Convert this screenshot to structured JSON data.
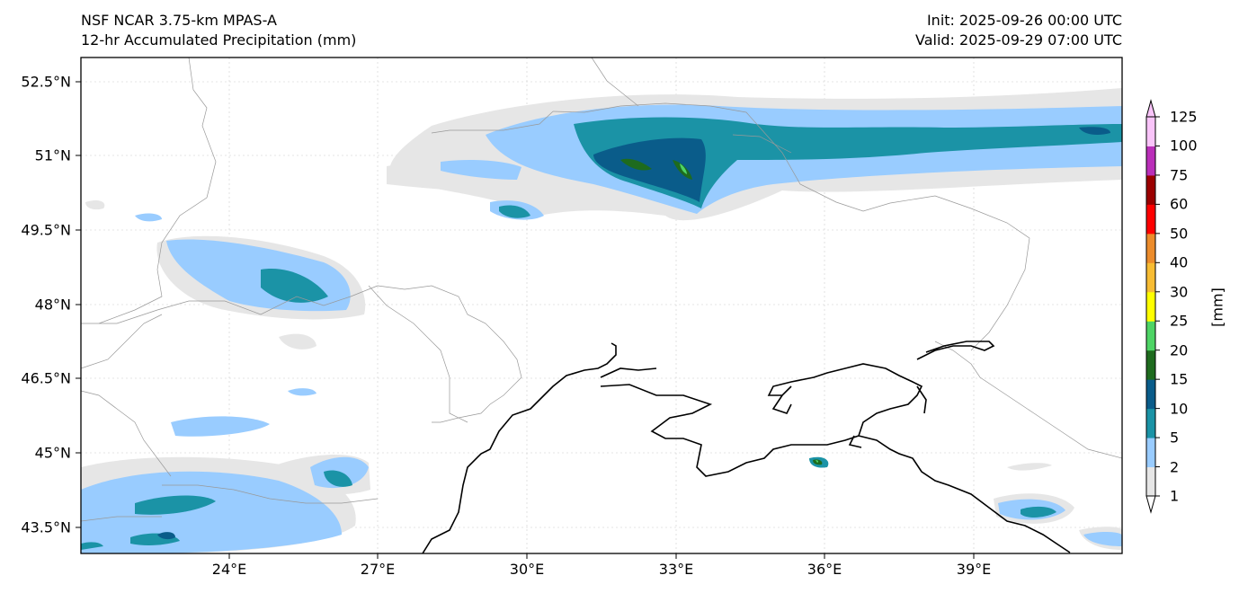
{
  "header": {
    "model": "NSF NCAR 3.75-km MPAS-A",
    "field": "12-hr Accumulated Precipitation (mm)",
    "init": "Init: 2025-09-26 00:00 UTC",
    "valid": "Valid: 2025-09-29 07:00 UTC"
  },
  "axes": {
    "lat_labels": [
      "52.5°N",
      "51°N",
      "49.5°N",
      "48°N",
      "46.5°N",
      "45°N",
      "43.5°N"
    ],
    "lon_labels": [
      "24°E",
      "27°E",
      "30°E",
      "33°E",
      "36°E",
      "39°E"
    ]
  },
  "colorbar": {
    "unit_label": "[mm]",
    "levels": [
      "1",
      "2",
      "5",
      "10",
      "15",
      "20",
      "25",
      "30",
      "40",
      "50",
      "60",
      "75",
      "100",
      "125"
    ],
    "colors": [
      "#e6e6e6",
      "#99ccff",
      "#1b93a6",
      "#0a5c8a",
      "#1e6b1e",
      "#4ed465",
      "#ffff00",
      "#f7bc33",
      "#ec8c2c",
      "#fe0000",
      "#9b0000",
      "#ba2fb9",
      "#f9c4f9"
    ],
    "extend_top_color": "#f9c4f9",
    "extend_bottom_color": "#ffffff"
  }
}
